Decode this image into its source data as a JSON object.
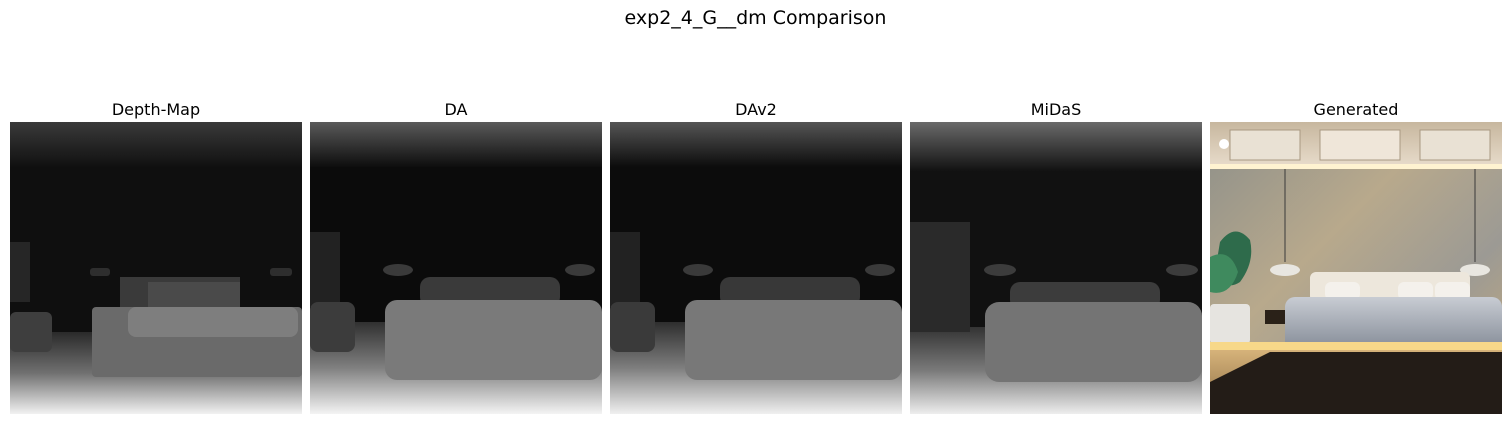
{
  "figure": {
    "title": "exp2_4_G__dm Comparison"
  },
  "panels": [
    {
      "title": "Depth-Map",
      "kind": "depth"
    },
    {
      "title": "DA",
      "kind": "depth"
    },
    {
      "title": "DAv2",
      "kind": "depth"
    },
    {
      "title": "MiDaS",
      "kind": "depth"
    },
    {
      "title": "Generated",
      "kind": "rgb"
    }
  ]
}
